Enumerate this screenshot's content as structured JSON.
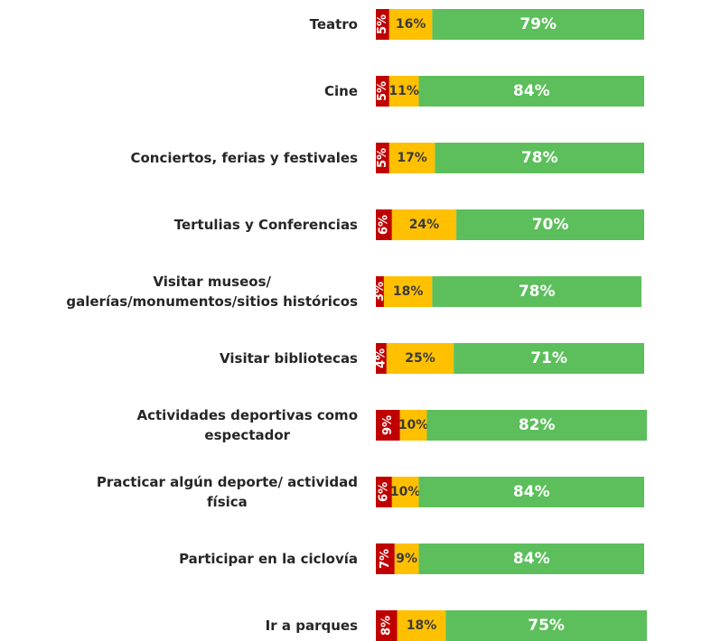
{
  "chart_data": {
    "type": "stacked-bar",
    "categories": [
      "Teatro",
      "Cine",
      "Conciertos, ferias y festivales",
      "Tertulias y Conferencias",
      "Visitar museos/\ngalerías/monumentos/sitios históricos",
      "Visitar bibliotecas",
      "Actividades deportivas como\nespectador",
      "Practicar algún deporte/ actividad\nfísica",
      "Participar en la ciclovía",
      "Ir a parques"
    ],
    "series": [
      {
        "color": "#c00000",
        "values": [
          5,
          5,
          5,
          6,
          3,
          4,
          9,
          6,
          7,
          8
        ],
        "value_labels": [
          "5%",
          "5%",
          "5%",
          "6%",
          "3%",
          "4%",
          "9%",
          "6%",
          "7%",
          "8%"
        ]
      },
      {
        "color": "#ffc000",
        "values": [
          16,
          11,
          17,
          24,
          18,
          25,
          10,
          10,
          9,
          18
        ],
        "value_labels": [
          "16%",
          "11%",
          "17%",
          "24%",
          "18%",
          "25%",
          "10%",
          "10%",
          "9%",
          "18%"
        ]
      },
      {
        "color": "#5cbf5c",
        "values": [
          79,
          84,
          78,
          70,
          78,
          71,
          82,
          84,
          84,
          75
        ],
        "value_labels": [
          "79%",
          "84%",
          "78%",
          "70%",
          "78%",
          "71%",
          "82%",
          "84%",
          "84%",
          "75%"
        ]
      }
    ]
  }
}
